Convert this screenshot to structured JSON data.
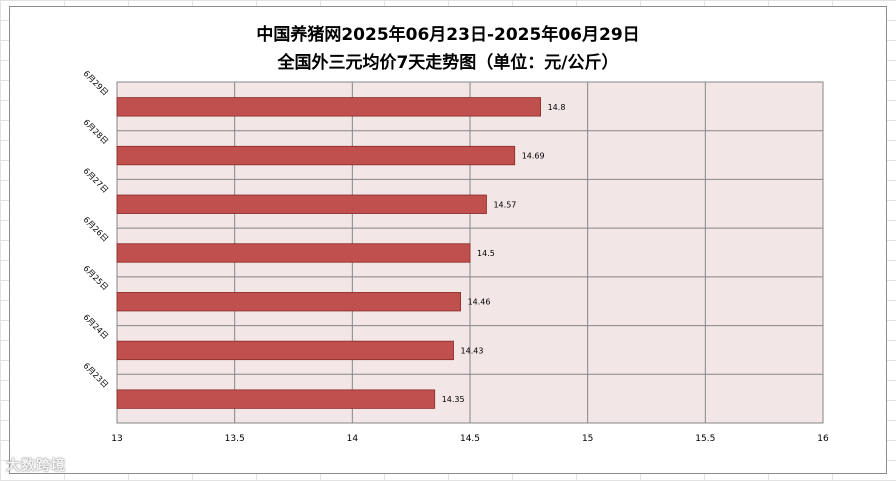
{
  "chart_data": {
    "type": "bar",
    "orientation": "horizontal",
    "title_line1": "中国养猪网2025年06月23日-2025年06月29日",
    "title_line2": "全国外三元均价7天走势图（单位：元/公斤）",
    "categories": [
      "6月29日",
      "6月28日",
      "6月27日",
      "6月26日",
      "6月25日",
      "6月24日",
      "6月23日"
    ],
    "values": [
      14.8,
      14.69,
      14.57,
      14.5,
      14.46,
      14.43,
      14.35
    ],
    "data_labels": [
      "14.8",
      "14.69",
      "14.57",
      "14.5",
      "14.46",
      "14.43",
      "14.35"
    ],
    "x_ticks": [
      "13",
      "13.5",
      "14",
      "14.5",
      "15",
      "15.5",
      "16"
    ],
    "xlim": [
      13,
      16
    ],
    "grid": true,
    "legend": "none",
    "colors": {
      "bar": "#c0504d",
      "bar_border": "#8b2a28",
      "plot_bg": "#f2e6e6",
      "grid": "#868686"
    }
  },
  "watermark": "大数跨境"
}
